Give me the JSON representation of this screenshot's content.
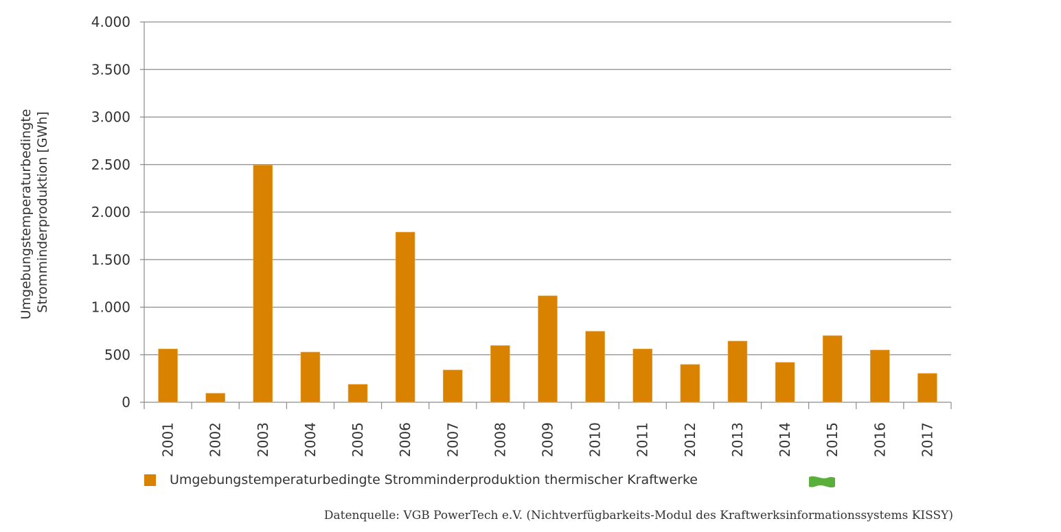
{
  "chart_data": {
    "type": "bar",
    "title": "",
    "xlabel": "",
    "ylabel": "Umgebungstemperaturbedingte Stromminderproduktion [GWh]",
    "ylabel_lines": [
      "Umgebungstemperaturbedingte",
      "Stromminderproduktion [GWh]"
    ],
    "ylim": [
      0,
      4000
    ],
    "yticks": [
      0,
      500,
      1000,
      1500,
      2000,
      2500,
      3000,
      3500,
      4000
    ],
    "ytick_labels": [
      "0",
      "500",
      "1.000",
      "1.500",
      "2.000",
      "2.500",
      "3.000",
      "3.500",
      "4.000"
    ],
    "categories": [
      "2001",
      "2002",
      "2003",
      "2004",
      "2005",
      "2006",
      "2007",
      "2008",
      "2009",
      "2010",
      "2011",
      "2012",
      "2013",
      "2014",
      "2015",
      "2016",
      "2017"
    ],
    "series": [
      {
        "name": "Umgebungstemperaturbedingte Stromminderproduktion thermischer Kraftwerke",
        "color": "#d98200",
        "values": [
          561,
          95,
          2495,
          528,
          189,
          1790,
          340,
          597,
          1120,
          747,
          561,
          398,
          644,
          420,
          701,
          550,
          304
        ]
      }
    ],
    "grid": true,
    "legend_position": "bottom-left"
  },
  "legend": {
    "label": "Umgebungstemperaturbedingte Stromminderproduktion thermischer Kraftwerke",
    "icon": "green-flag-icon",
    "icon_color": "#5aae3c"
  },
  "source": "Datenquelle: VGB PowerTech e.V. (Nichtverfügbarkeits-Modul des Kraftwerksinformationssystems KISSY)"
}
